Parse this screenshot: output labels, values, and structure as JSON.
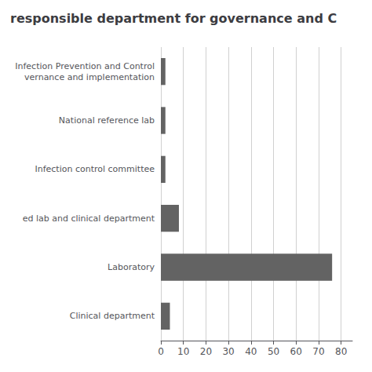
{
  "chart_data": {
    "type": "bar",
    "orientation": "horizontal",
    "title": "responsible department for governance and C",
    "categories": [
      "Infection Prevention and Control\nvernance and implementation",
      "National reference lab",
      "Infection control committee",
      "ed lab and clinical department",
      "Laboratory",
      "Clinical department"
    ],
    "values": [
      2,
      2,
      2,
      8,
      76,
      4
    ],
    "color": "#636363",
    "xlim": [
      0,
      85
    ],
    "xticks": [
      0,
      10,
      20,
      30,
      40,
      50,
      60,
      70,
      80
    ],
    "grid": true
  }
}
